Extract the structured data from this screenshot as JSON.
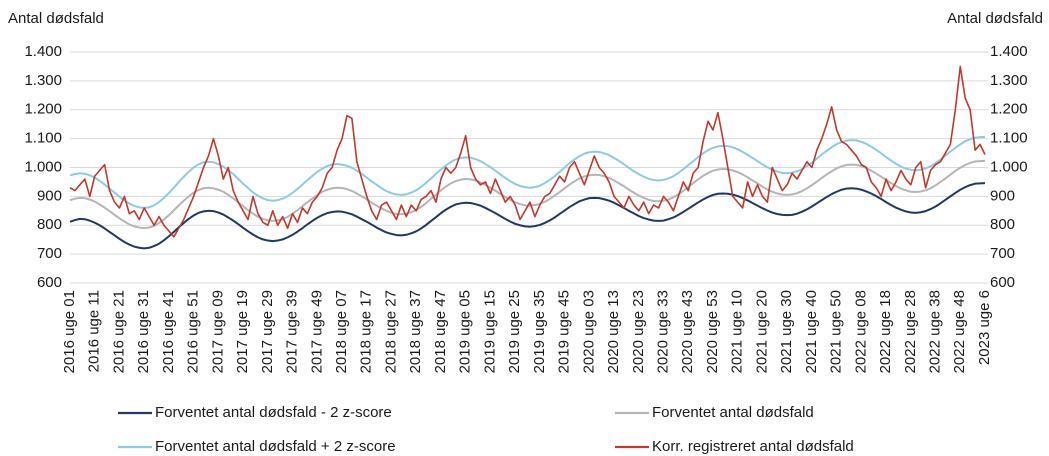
{
  "chart_data": {
    "type": "line",
    "ylabel": "Antal dødsfald",
    "y2label": "Antal dødsfald",
    "ylim": [
      600,
      1400
    ],
    "yticks": [
      {
        "value": 600,
        "label": "600"
      },
      {
        "value": 700,
        "label": "700"
      },
      {
        "value": 800,
        "label": "800"
      },
      {
        "value": 900,
        "label": "900"
      },
      {
        "value": 1000,
        "label": "1.000"
      },
      {
        "value": 1100,
        "label": "1.100"
      },
      {
        "value": 1200,
        "label": "1.200"
      },
      {
        "value": 1300,
        "label": "1.300"
      },
      {
        "value": 1400,
        "label": "1.400"
      }
    ],
    "y2lim": [
      600,
      1400
    ],
    "y2ticks": [
      {
        "value": 600,
        "label": "600"
      },
      {
        "value": 700,
        "label": "700"
      },
      {
        "value": 800,
        "label": "800"
      },
      {
        "value": 900,
        "label": "900"
      },
      {
        "value": 1000,
        "label": "1.000"
      },
      {
        "value": 1100,
        "label": "1.100"
      },
      {
        "value": 1200,
        "label": "1.200"
      },
      {
        "value": 1300,
        "label": "1.300"
      },
      {
        "value": 1400,
        "label": "1.400"
      }
    ],
    "grid": true,
    "legend": "bottom",
    "categories": [
      "2016 uge 01",
      null,
      null,
      null,
      null,
      "2016 uge 11",
      null,
      null,
      null,
      null,
      "2016 uge 21",
      null,
      null,
      null,
      null,
      "2016 uge 31",
      null,
      null,
      null,
      null,
      "2016 uge 41",
      null,
      null,
      null,
      null,
      "2016 uge 51",
      null,
      null,
      null,
      null,
      "2017 uge 09",
      null,
      null,
      null,
      null,
      "2017 uge 19",
      null,
      null,
      null,
      null,
      "2017 uge 29",
      null,
      null,
      null,
      null,
      "2017 uge 39",
      null,
      null,
      null,
      null,
      "2017 uge 49",
      null,
      null,
      null,
      null,
      "2018 uge 07",
      null,
      null,
      null,
      null,
      "2018 uge 17",
      null,
      null,
      null,
      null,
      "2018 uge 27",
      null,
      null,
      null,
      null,
      "2018 uge 37",
      null,
      null,
      null,
      null,
      "2018 uge 47",
      null,
      null,
      null,
      null,
      "2019 uge 05",
      null,
      null,
      null,
      null,
      "2019 uge 15",
      null,
      null,
      null,
      null,
      "2019 uge 25",
      null,
      null,
      null,
      null,
      "2019 uge 35",
      null,
      null,
      null,
      null,
      "2019 uge 45",
      null,
      null,
      null,
      null,
      "2020 uge 03",
      null,
      null,
      null,
      null,
      "2020 uge 13",
      null,
      null,
      null,
      null,
      "2020 uge 23",
      null,
      null,
      null,
      null,
      "2020 uge 33",
      null,
      null,
      null,
      null,
      "2020 uge 43",
      null,
      null,
      null,
      null,
      "2020 uge 53",
      null,
      null,
      null,
      null,
      "2021 uge 10",
      null,
      null,
      null,
      null,
      "2021 uge 20",
      null,
      null,
      null,
      null,
      "2021 uge 30",
      null,
      null,
      null,
      null,
      "2021 uge 40",
      null,
      null,
      null,
      null,
      "2021 uge 50",
      null,
      null,
      null,
      null,
      "2022 uge 08",
      null,
      null,
      null,
      null,
      "2022 uge 18",
      null,
      null,
      null,
      null,
      "2022 uge 28",
      null,
      null,
      null,
      null,
      "2022 uge 38",
      null,
      null,
      null,
      null,
      "2022 uge 48",
      null,
      null,
      null,
      null,
      "2023 uge 6"
    ],
    "series": [
      {
        "name": "Forventet antal dødsfald - 2 z-score",
        "color": "#1f3864",
        "values": [
          812,
          818,
          822,
          821,
          816,
          809,
          800,
          789,
          777,
          765,
          753,
          742,
          733,
          726,
          722,
          720,
          722,
          728,
          736,
          748,
          762,
          777,
          793,
          808,
          822,
          834,
          843,
          848,
          850,
          849,
          844,
          837,
          827,
          816,
          804,
          791,
          779,
          768,
          758,
          751,
          747,
          745,
          747,
          751,
          758,
          767,
          778,
          790,
          803,
          815,
          826,
          835,
          842,
          846,
          848,
          847,
          843,
          838,
          830,
          821,
          812,
          802,
          792,
          783,
          775,
          770,
          766,
          765,
          767,
          772,
          779,
          789,
          801,
          815,
          828,
          842,
          854,
          864,
          872,
          876,
          878,
          877,
          873,
          868,
          860,
          851,
          842,
          832,
          822,
          813,
          805,
          800,
          796,
          795,
          797,
          801,
          808,
          817,
          827,
          839,
          851,
          863,
          873,
          883,
          889,
          894,
          895,
          894,
          890,
          885,
          878,
          869,
          860,
          850,
          841,
          832,
          825,
          820,
          816,
          815,
          816,
          821,
          827,
          836,
          846,
          857,
          868,
          879,
          889,
          898,
          905,
          909,
          910,
          909,
          906,
          901,
          894,
          886,
          877,
          868,
          859,
          851,
          844,
          839,
          836,
          835,
          836,
          840,
          847,
          855,
          865,
          876,
          887,
          898,
          908,
          916,
          923,
          927,
          928,
          927,
          923,
          917,
          910,
          901,
          891,
          880,
          870,
          861,
          854,
          848,
          844,
          843,
          845,
          849,
          856,
          865,
          876,
          888,
          900,
          912,
          923,
          932,
          939,
          944,
          945,
          946
        ]
      },
      {
        "name": "Forventet antal dødsfald",
        "color": "#b5b5b5",
        "values": [
          887,
          892,
          895,
          894,
          889,
          882,
          872,
          861,
          849,
          836,
          824,
          813,
          803,
          796,
          792,
          790,
          792,
          798,
          808,
          820,
          835,
          852,
          869,
          885,
          900,
          913,
          922,
          928,
          930,
          928,
          923,
          916,
          905,
          893,
          880,
          866,
          852,
          840,
          829,
          822,
          817,
          815,
          817,
          822,
          829,
          840,
          852,
          866,
          880,
          893,
          905,
          916,
          923,
          928,
          930,
          929,
          925,
          919,
          910,
          900,
          890,
          878,
          868,
          858,
          850,
          843,
          839,
          838,
          840,
          845,
          853,
          864,
          877,
          892,
          906,
          921,
          934,
          945,
          953,
          958,
          960,
          959,
          955,
          948,
          940,
          930,
          920,
          908,
          898,
          888,
          880,
          873,
          869,
          868,
          870,
          874,
          881,
          891,
          903,
          915,
          928,
          941,
          952,
          962,
          969,
          973,
          975,
          974,
          970,
          964,
          955,
          945,
          935,
          923,
          913,
          903,
          895,
          888,
          884,
          883,
          885,
          889,
          897,
          907,
          919,
          932,
          946,
          959,
          971,
          981,
          989,
          993,
          995,
          994,
          990,
          984,
          976,
          966,
          955,
          945,
          934,
          924,
          916,
          910,
          906,
          905,
          907,
          911,
          918,
          928,
          939,
          951,
          964,
          976,
          987,
          997,
          1004,
          1009,
          1010,
          1009,
          1005,
          998,
          989,
          979,
          968,
          957,
          946,
          936,
          927,
          921,
          916,
          915,
          917,
          921,
          928,
          938,
          950,
          962,
          975,
          988,
          999,
          1009,
          1016,
          1021,
          1022,
          1023
        ]
      },
      {
        "name": "Forventet antal dødsfald + 2 z-score",
        "color": "#8ecae6",
        "values": [
          973,
          977,
          980,
          978,
          973,
          965,
          954,
          941,
          927,
          913,
          899,
          886,
          875,
          867,
          862,
          860,
          862,
          869,
          880,
          895,
          912,
          930,
          950,
          968,
          985,
          1000,
          1011,
          1018,
          1020,
          1018,
          1012,
          1003,
          991,
          977,
          961,
          944,
          929,
          914,
          902,
          893,
          887,
          885,
          887,
          892,
          901,
          912,
          926,
          941,
          956,
          971,
          985,
          996,
          1005,
          1010,
          1012,
          1010,
          1006,
          999,
          989,
          978,
          965,
          952,
          940,
          928,
          918,
          911,
          907,
          905,
          907,
          913,
          921,
          933,
          947,
          962,
          978,
          993,
          1007,
          1019,
          1028,
          1033,
          1035,
          1034,
          1029,
          1022,
          1012,
          1001,
          989,
          976,
          964,
          953,
          943,
          936,
          932,
          930,
          932,
          937,
          946,
          957,
          970,
          985,
          1000,
          1015,
          1028,
          1039,
          1048,
          1053,
          1055,
          1054,
          1049,
          1043,
          1033,
          1023,
          1011,
          999,
          987,
          977,
          968,
          961,
          957,
          955,
          957,
          962,
          970,
          981,
          994,
          1008,
          1022,
          1036,
          1049,
          1060,
          1068,
          1073,
          1075,
          1074,
          1070,
          1063,
          1054,
          1044,
          1033,
          1022,
          1011,
          1001,
          992,
          986,
          981,
          980,
          982,
          987,
          994,
          1005,
          1017,
          1031,
          1045,
          1058,
          1070,
          1081,
          1088,
          1093,
          1095,
          1094,
          1089,
          1082,
          1072,
          1061,
          1049,
          1036,
          1024,
          1013,
          1003,
          996,
          992,
          990,
          992,
          997,
          1004,
          1015,
          1027,
          1041,
          1055,
          1068,
          1080,
          1091,
          1098,
          1103,
          1105,
          1106
        ]
      },
      {
        "name": "Korr. registreret antal dødsfald",
        "color": "#c0392b",
        "values": [
          930,
          920,
          940,
          960,
          900,
          970,
          990,
          1010,
          920,
          880,
          860,
          900,
          840,
          850,
          820,
          860,
          830,
          800,
          830,
          800,
          780,
          760,
          790,
          820,
          860,
          900,
          950,
          1000,
          1040,
          1100,
          1040,
          960,
          1000,
          920,
          880,
          850,
          820,
          900,
          840,
          810,
          800,
          850,
          800,
          830,
          790,
          840,
          810,
          860,
          840,
          880,
          900,
          930,
          980,
          1000,
          1060,
          1100,
          1180,
          1170,
          1020,
          960,
          900,
          850,
          820,
          870,
          880,
          850,
          820,
          870,
          830,
          870,
          850,
          890,
          900,
          920,
          880,
          960,
          1000,
          980,
          1000,
          1050,
          1110,
          1000,
          960,
          940,
          950,
          910,
          960,
          920,
          880,
          900,
          870,
          820,
          850,
          880,
          830,
          870,
          900,
          910,
          940,
          970,
          950,
          1000,
          1020,
          980,
          940,
          990,
          1040,
          1000,
          980,
          950,
          900,
          880,
          860,
          900,
          870,
          850,
          880,
          840,
          870,
          860,
          900,
          880,
          850,
          900,
          950,
          920,
          980,
          1000,
          1090,
          1160,
          1130,
          1190,
          1100,
          1000,
          900,
          880,
          860,
          950,
          900,
          940,
          900,
          880,
          1000,
          960,
          920,
          940,
          980,
          960,
          990,
          1020,
          1000,
          1060,
          1100,
          1150,
          1210,
          1130,
          1090,
          1080,
          1060,
          1040,
          1010,
          1000,
          950,
          930,
          900,
          960,
          920,
          950,
          990,
          960,
          940,
          1000,
          1020,
          930,
          990,
          1010,
          1020,
          1050,
          1080,
          1200,
          1350,
          1240,
          1200,
          1060,
          1080,
          1045
        ]
      }
    ]
  }
}
